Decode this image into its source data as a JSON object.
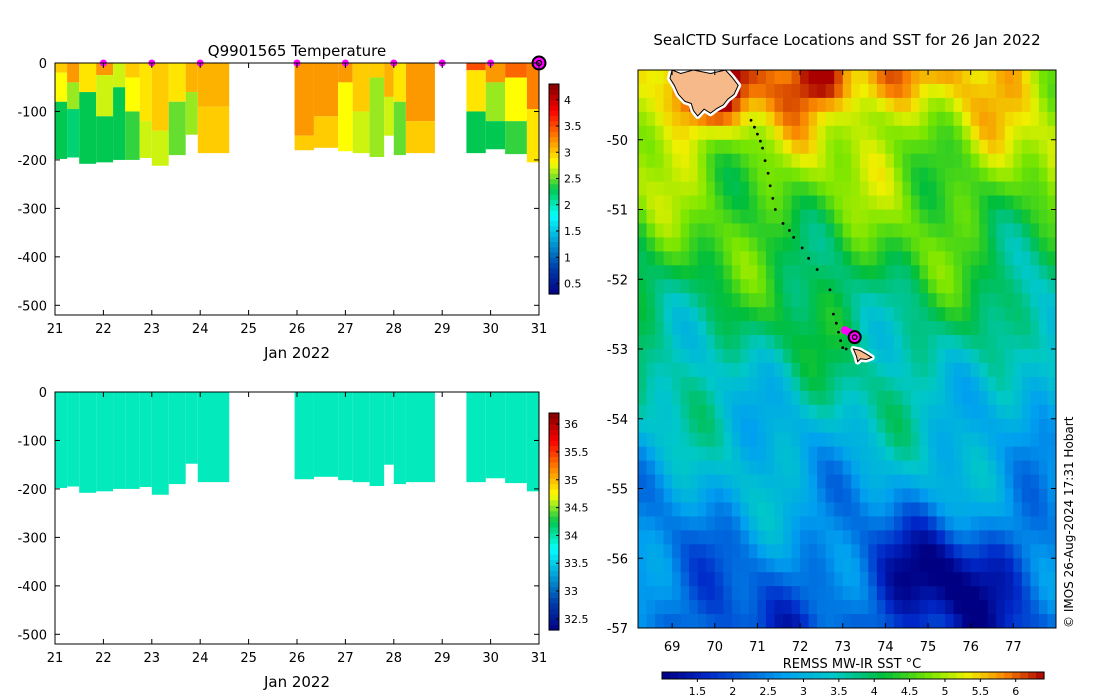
{
  "chart_data": [
    {
      "type": "heatmap",
      "title": "Q9901565  Temperature",
      "xlabel": "Jan 2022",
      "ylabel": "",
      "xlim": [
        21,
        31
      ],
      "ylim": [
        -520,
        0
      ],
      "xticks": [
        21,
        22,
        23,
        24,
        25,
        26,
        27,
        28,
        29,
        30,
        31
      ],
      "yticks": [
        0,
        -100,
        -200,
        -300,
        -400,
        -500
      ],
      "colorbar": {
        "min": 0.3,
        "max": 4.3,
        "ticks": [
          0.5,
          1,
          1.5,
          2,
          2.5,
          3,
          3.5,
          4
        ]
      },
      "surface_markers": [
        22,
        23,
        24,
        26,
        27,
        28,
        29,
        30
      ],
      "last_position_marker": 31,
      "profiles": [
        {
          "start": 21.0,
          "end": 21.25,
          "depth": 198,
          "layers": [
            [
              0,
              20,
              3.0
            ],
            [
              20,
              80,
              2.8
            ],
            [
              80,
              198,
              2.3
            ]
          ]
        },
        {
          "start": 21.25,
          "end": 21.5,
          "depth": 195,
          "layers": [
            [
              0,
              40,
              3.2
            ],
            [
              40,
              95,
              2.6
            ],
            [
              95,
              195,
              2.2
            ]
          ]
        },
        {
          "start": 21.5,
          "end": 21.85,
          "depth": 208,
          "layers": [
            [
              0,
              60,
              2.9
            ],
            [
              60,
              208,
              2.3
            ]
          ]
        },
        {
          "start": 21.85,
          "end": 22.2,
          "depth": 205,
          "layers": [
            [
              0,
              25,
              3.2
            ],
            [
              25,
              110,
              2.7
            ],
            [
              110,
              205,
              2.3
            ]
          ]
        },
        {
          "start": 22.2,
          "end": 22.45,
          "depth": 200,
          "layers": [
            [
              0,
              50,
              2.7
            ],
            [
              50,
              200,
              2.3
            ]
          ]
        },
        {
          "start": 22.45,
          "end": 22.75,
          "depth": 200,
          "layers": [
            [
              0,
              30,
              3.0
            ],
            [
              30,
              100,
              2.8
            ],
            [
              100,
              200,
              2.4
            ]
          ]
        },
        {
          "start": 22.75,
          "end": 23.0,
          "depth": 196,
          "layers": [
            [
              0,
              120,
              2.9
            ],
            [
              120,
              196,
              2.7
            ]
          ]
        },
        {
          "start": 23.0,
          "end": 23.35,
          "depth": 212,
          "layers": [
            [
              0,
              140,
              3.0
            ],
            [
              140,
              212,
              2.7
            ]
          ]
        },
        {
          "start": 23.35,
          "end": 23.7,
          "depth": 190,
          "layers": [
            [
              0,
              80,
              2.9
            ],
            [
              80,
              190,
              2.5
            ]
          ]
        },
        {
          "start": 23.7,
          "end": 23.95,
          "depth": 148,
          "layers": [
            [
              0,
              60,
              3.1
            ],
            [
              60,
              148,
              2.6
            ]
          ]
        },
        {
          "start": 23.95,
          "end": 24.6,
          "depth": 186,
          "layers": [
            [
              0,
              90,
              3.1
            ],
            [
              90,
              186,
              3.0
            ]
          ]
        },
        {
          "start": 25.95,
          "end": 26.35,
          "depth": 180,
          "layers": [
            [
              0,
              150,
              3.2
            ],
            [
              150,
              180,
              3.0
            ]
          ]
        },
        {
          "start": 26.35,
          "end": 26.85,
          "depth": 175,
          "layers": [
            [
              0,
              110,
              3.2
            ],
            [
              110,
              175,
              3.0
            ]
          ]
        },
        {
          "start": 26.85,
          "end": 27.15,
          "depth": 182,
          "layers": [
            [
              0,
              40,
              3.2
            ],
            [
              40,
              182,
              2.8
            ]
          ]
        },
        {
          "start": 27.15,
          "end": 27.5,
          "depth": 186,
          "layers": [
            [
              0,
              100,
              3.0
            ],
            [
              100,
              186,
              2.7
            ]
          ]
        },
        {
          "start": 27.5,
          "end": 27.8,
          "depth": 194,
          "layers": [
            [
              0,
              30,
              3.0
            ],
            [
              30,
              194,
              2.6
            ]
          ]
        },
        {
          "start": 27.8,
          "end": 28.0,
          "depth": 150,
          "layers": [
            [
              0,
              70,
              3.1
            ],
            [
              70,
              150,
              2.7
            ]
          ]
        },
        {
          "start": 28.0,
          "end": 28.25,
          "depth": 190,
          "layers": [
            [
              0,
              80,
              2.9
            ],
            [
              80,
              190,
              2.5
            ]
          ]
        },
        {
          "start": 28.25,
          "end": 28.85,
          "depth": 186,
          "layers": [
            [
              0,
              120,
              3.2
            ],
            [
              120,
              186,
              3.0
            ]
          ]
        },
        {
          "start": 29.5,
          "end": 29.9,
          "depth": 186,
          "layers": [
            [
              0,
              15,
              3.5
            ],
            [
              15,
              100,
              2.9
            ],
            [
              100,
              186,
              2.3
            ]
          ]
        },
        {
          "start": 29.9,
          "end": 30.3,
          "depth": 178,
          "layers": [
            [
              0,
              40,
              3.2
            ],
            [
              40,
              120,
              2.6
            ],
            [
              120,
              178,
              2.3
            ]
          ]
        },
        {
          "start": 30.3,
          "end": 30.75,
          "depth": 188,
          "layers": [
            [
              0,
              30,
              3.4
            ],
            [
              30,
              120,
              2.8
            ],
            [
              120,
              188,
              2.4
            ]
          ]
        },
        {
          "start": 30.75,
          "end": 31.05,
          "depth": 205,
          "layers": [
            [
              0,
              95,
              3.3
            ],
            [
              95,
              205,
              2.9
            ]
          ]
        }
      ]
    },
    {
      "type": "heatmap",
      "title": "",
      "xlabel": "Jan 2022",
      "ylabel": "",
      "xlim": [
        21,
        31
      ],
      "ylim": [
        -520,
        0
      ],
      "xticks": [
        21,
        22,
        23,
        24,
        25,
        26,
        27,
        28,
        29,
        30,
        31
      ],
      "yticks": [
        0,
        -100,
        -200,
        -300,
        -400,
        -500
      ],
      "colorbar": {
        "min": 32.3,
        "max": 36.2,
        "ticks": [
          32.5,
          33,
          33.5,
          34,
          34.5,
          35,
          35.5,
          36
        ]
      },
      "profiles": [
        {
          "start": 21.0,
          "end": 21.25,
          "depth": 198,
          "value": 33.95
        },
        {
          "start": 21.25,
          "end": 21.5,
          "depth": 195,
          "value": 33.95
        },
        {
          "start": 21.5,
          "end": 21.85,
          "depth": 208,
          "value": 33.95
        },
        {
          "start": 21.85,
          "end": 22.2,
          "depth": 205,
          "value": 33.95
        },
        {
          "start": 22.2,
          "end": 22.45,
          "depth": 200,
          "value": 33.95
        },
        {
          "start": 22.45,
          "end": 22.75,
          "depth": 200,
          "value": 33.95
        },
        {
          "start": 22.75,
          "end": 23.0,
          "depth": 196,
          "value": 33.95
        },
        {
          "start": 23.0,
          "end": 23.35,
          "depth": 212,
          "value": 33.95
        },
        {
          "start": 23.35,
          "end": 23.7,
          "depth": 190,
          "value": 33.95
        },
        {
          "start": 23.7,
          "end": 23.95,
          "depth": 148,
          "value": 33.95
        },
        {
          "start": 23.95,
          "end": 24.6,
          "depth": 186,
          "value": 33.95
        },
        {
          "start": 25.95,
          "end": 26.35,
          "depth": 180,
          "value": 33.95
        },
        {
          "start": 26.35,
          "end": 26.85,
          "depth": 175,
          "value": 33.95
        },
        {
          "start": 26.85,
          "end": 27.15,
          "depth": 182,
          "value": 33.95
        },
        {
          "start": 27.15,
          "end": 27.5,
          "depth": 186,
          "value": 33.95
        },
        {
          "start": 27.5,
          "end": 27.8,
          "depth": 194,
          "value": 33.95
        },
        {
          "start": 27.8,
          "end": 28.0,
          "depth": 150,
          "value": 33.95
        },
        {
          "start": 28.0,
          "end": 28.25,
          "depth": 190,
          "value": 33.95
        },
        {
          "start": 28.25,
          "end": 28.85,
          "depth": 186,
          "value": 33.95
        },
        {
          "start": 29.5,
          "end": 29.9,
          "depth": 186,
          "value": 33.95
        },
        {
          "start": 29.9,
          "end": 30.3,
          "depth": 178,
          "value": 33.95
        },
        {
          "start": 30.3,
          "end": 30.75,
          "depth": 188,
          "value": 33.95
        },
        {
          "start": 30.75,
          "end": 31.05,
          "depth": 205,
          "value": 33.95
        }
      ]
    },
    {
      "type": "heatmap",
      "title": "SealCTD Surface Locations and SST for 26 Jan 2022",
      "xlabel": "",
      "ylabel": "",
      "xlim": [
        68.2,
        78.0
      ],
      "ylim": [
        -57.0,
        -49.0
      ],
      "xticks": [
        69,
        70,
        71,
        72,
        73,
        74,
        75,
        76,
        77
      ],
      "yticks": [
        -50,
        -51,
        -52,
        -53,
        -54,
        -55,
        -56,
        -57
      ],
      "colorbar": {
        "label": "REMSS MW-IR SST °C",
        "min": 1.0,
        "max": 6.4,
        "ticks": [
          1.5,
          2,
          2.5,
          3,
          3.5,
          4,
          4.5,
          5,
          5.5,
          6
        ]
      },
      "track": [
        [
          70.85,
          -49.72
        ],
        [
          70.93,
          -49.82
        ],
        [
          71.0,
          -49.92
        ],
        [
          71.07,
          -50.02
        ],
        [
          71.12,
          -50.12
        ],
        [
          71.18,
          -50.3
        ],
        [
          71.25,
          -50.48
        ],
        [
          71.3,
          -50.66
        ],
        [
          71.36,
          -50.84
        ],
        [
          71.42,
          -51.0
        ],
        [
          71.6,
          -51.2
        ],
        [
          71.75,
          -51.3
        ],
        [
          71.85,
          -51.4
        ],
        [
          72.05,
          -51.55
        ],
        [
          72.2,
          -51.7
        ],
        [
          72.4,
          -51.86
        ],
        [
          72.7,
          -52.15
        ],
        [
          72.78,
          -52.5
        ],
        [
          72.85,
          -52.63
        ],
        [
          72.9,
          -52.76
        ],
        [
          72.95,
          -52.88
        ],
        [
          73.0,
          -52.98
        ],
        [
          73.08,
          -53.0
        ]
      ],
      "recent_positions": [
        [
          73.05,
          -52.73
        ],
        [
          73.15,
          -52.76
        ],
        [
          73.22,
          -52.8
        ]
      ],
      "current_position": [
        73.28,
        -52.83
      ],
      "land": [
        {
          "name": "Kerguelen Islands",
          "outline": [
            [
              69.0,
              -49.0
            ],
            [
              69.2,
              -49.05
            ],
            [
              69.5,
              -49.0
            ],
            [
              69.9,
              -49.05
            ],
            [
              70.25,
              -49.0
            ],
            [
              70.4,
              -49.1
            ],
            [
              70.55,
              -49.22
            ],
            [
              70.45,
              -49.35
            ],
            [
              70.3,
              -49.42
            ],
            [
              70.2,
              -49.5
            ],
            [
              70.05,
              -49.55
            ],
            [
              69.9,
              -49.62
            ],
            [
              69.75,
              -49.56
            ],
            [
              69.6,
              -49.66
            ],
            [
              69.5,
              -49.58
            ],
            [
              69.45,
              -49.48
            ],
            [
              69.3,
              -49.45
            ],
            [
              69.15,
              -49.35
            ],
            [
              69.05,
              -49.22
            ],
            [
              68.95,
              -49.12
            ]
          ]
        },
        {
          "name": "Heard Island",
          "outline": [
            [
              73.25,
              -53.0
            ],
            [
              73.4,
              -53.02
            ],
            [
              73.52,
              -53.06
            ],
            [
              73.68,
              -53.12
            ],
            [
              73.55,
              -53.15
            ],
            [
              73.42,
              -53.14
            ],
            [
              73.35,
              -53.18
            ],
            [
              73.32,
              -53.1
            ]
          ]
        }
      ]
    }
  ],
  "watermark": "© IMOS 26-Aug-2024 17:31 Hobart"
}
